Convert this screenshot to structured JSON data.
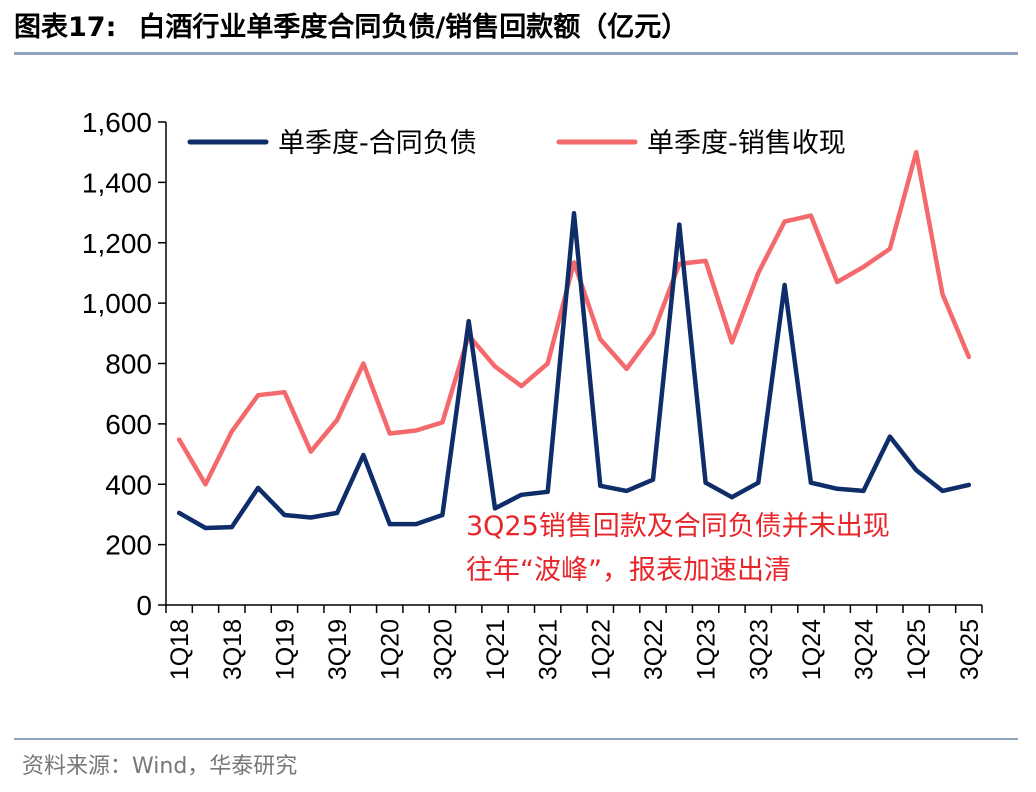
{
  "figure": {
    "label": "图表17:",
    "title": "白酒行业单季度合同负债/销售回款额（亿元）"
  },
  "source": "资料来源：Wind，华泰研究",
  "colors": {
    "liabilities": "#0f2d69",
    "cash_received": "#f4696b",
    "annotation": "#e8262a",
    "rule": "#8fa2bd"
  },
  "chart_data": {
    "type": "line",
    "title": "",
    "xlabel": "",
    "ylabel": "",
    "ylim": [
      0,
      1600
    ],
    "yticks": [
      0,
      200,
      400,
      600,
      800,
      1000,
      1200,
      1400,
      1600
    ],
    "ytick_labels": [
      "0",
      "200",
      "400",
      "600",
      "800",
      "1,000",
      "1,200",
      "1,400",
      "1,600"
    ],
    "grid": false,
    "legend_position": "top",
    "categories": [
      "1Q18",
      "2Q18",
      "3Q18",
      "4Q18",
      "1Q19",
      "2Q19",
      "3Q19",
      "4Q19",
      "1Q20",
      "2Q20",
      "3Q20",
      "4Q20",
      "1Q21",
      "2Q21",
      "3Q21",
      "4Q21",
      "1Q22",
      "2Q22",
      "3Q22",
      "4Q22",
      "1Q23",
      "2Q23",
      "3Q23",
      "4Q23",
      "1Q24",
      "2Q24",
      "3Q24",
      "4Q24",
      "1Q25",
      "2Q25",
      "3Q25"
    ],
    "xtick_labels": [
      "1Q18",
      "",
      "3Q18",
      "",
      "1Q19",
      "",
      "3Q19",
      "",
      "1Q20",
      "",
      "3Q20",
      "",
      "1Q21",
      "",
      "3Q21",
      "",
      "1Q22",
      "",
      "3Q22",
      "",
      "1Q23",
      "",
      "3Q23",
      "",
      "1Q24",
      "",
      "3Q24",
      "",
      "1Q25",
      "",
      "3Q25"
    ],
    "series": [
      {
        "name": "单季度-合同负债",
        "color": "#0f2d69",
        "values": [
          305,
          255,
          258,
          388,
          298,
          290,
          305,
          497,
          268,
          268,
          298,
          940,
          320,
          365,
          375,
          1298,
          395,
          378,
          415,
          1260,
          405,
          357,
          405,
          1060,
          405,
          385,
          378,
          558,
          447,
          378,
          398
        ]
      },
      {
        "name": "单季度-销售收现",
        "color": "#f4696b",
        "values": [
          548,
          400,
          575,
          695,
          705,
          508,
          613,
          800,
          568,
          578,
          605,
          893,
          790,
          725,
          800,
          1135,
          880,
          782,
          900,
          1130,
          1140,
          870,
          1100,
          1270,
          1290,
          1070,
          1120,
          1180,
          1500,
          1030,
          822
        ]
      }
    ],
    "annotation": {
      "lines": [
        "3Q25销售回款及合同负债并未出现",
        "往年“波峰”，报表加速出清"
      ]
    }
  }
}
